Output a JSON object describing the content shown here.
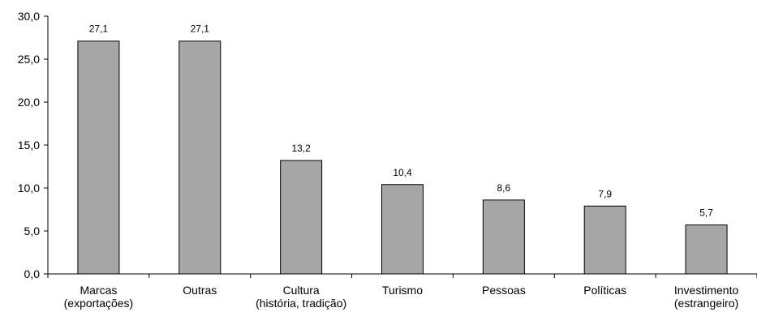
{
  "chart_data": {
    "type": "bar",
    "categories": [
      [
        "Marcas",
        "(exportações)"
      ],
      [
        "Outras"
      ],
      [
        "Cultura",
        "(história, tradição)"
      ],
      [
        "Turismo"
      ],
      [
        "Pessoas"
      ],
      [
        "Políticas"
      ],
      [
        "Investimento",
        "(estrangeiro)"
      ]
    ],
    "values": [
      27.1,
      27.1,
      13.2,
      10.4,
      8.6,
      7.9,
      5.7
    ],
    "value_labels": [
      "27,1",
      "27,1",
      "13,2",
      "10,4",
      "8,6",
      "7,9",
      "5,7"
    ],
    "y_ticks": [
      0,
      5,
      10,
      15,
      20,
      25,
      30
    ],
    "y_tick_labels": [
      "0,0",
      "5,0",
      "10,0",
      "15,0",
      "20,0",
      "25,0",
      "30,0"
    ],
    "ylim": [
      0,
      30
    ],
    "grid": false,
    "legend": "none",
    "bar_color": "#a6a6a6",
    "title": "",
    "xlabel": "",
    "ylabel": ""
  }
}
